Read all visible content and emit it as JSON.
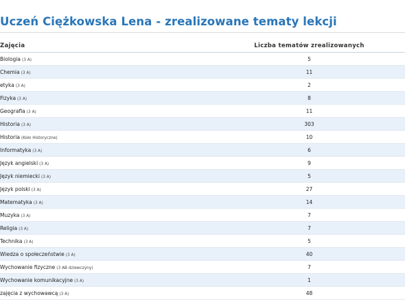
{
  "page": {
    "title": "Uczeń Ciężkowska Lena - zrealizowane tematy lekcji"
  },
  "table": {
    "headers": {
      "subject": "Zajęcia",
      "count": "Liczba tematów zrealizowanych"
    },
    "rows": [
      {
        "subject": "Biologia",
        "group": "(3 A)",
        "count": "5"
      },
      {
        "subject": "Chemia",
        "group": "(3 A)",
        "count": "11"
      },
      {
        "subject": "etyka",
        "group": "(3 A)",
        "count": "2"
      },
      {
        "subject": "Fizyka",
        "group": "(3 A)",
        "count": "8"
      },
      {
        "subject": "Geografia",
        "group": "(3 A)",
        "count": "11"
      },
      {
        "subject": "Historia",
        "group": "(3 A)",
        "count": "303"
      },
      {
        "subject": "Historia",
        "group": "(Koło Historyczne)",
        "count": "10"
      },
      {
        "subject": "Informatyka",
        "group": "(3 A)",
        "count": "6"
      },
      {
        "subject": "Język angielski",
        "group": "(3 A)",
        "count": "9"
      },
      {
        "subject": "Język niemiecki",
        "group": "(3 A)",
        "count": "5"
      },
      {
        "subject": "Język polski",
        "group": "(3 A)",
        "count": "27"
      },
      {
        "subject": "Matematyka",
        "group": "(3 A)",
        "count": "14"
      },
      {
        "subject": "Muzyka",
        "group": "(3 A)",
        "count": "7"
      },
      {
        "subject": "Religia",
        "group": "(3 A)",
        "count": "7"
      },
      {
        "subject": "Technika",
        "group": "(3 A)",
        "count": "5"
      },
      {
        "subject": "Wiedza o społeczeństwie",
        "group": "(3 A)",
        "count": "40"
      },
      {
        "subject": "Wychowanie fizyczne",
        "group": "(3 AB dziewczyny)",
        "count": "7"
      },
      {
        "subject": "Wychowanie komunikacyjne",
        "group": "(3 A)",
        "count": "1"
      },
      {
        "subject": "zajęcia z wychowawcą",
        "group": "(3 A)",
        "count": "48"
      }
    ]
  }
}
